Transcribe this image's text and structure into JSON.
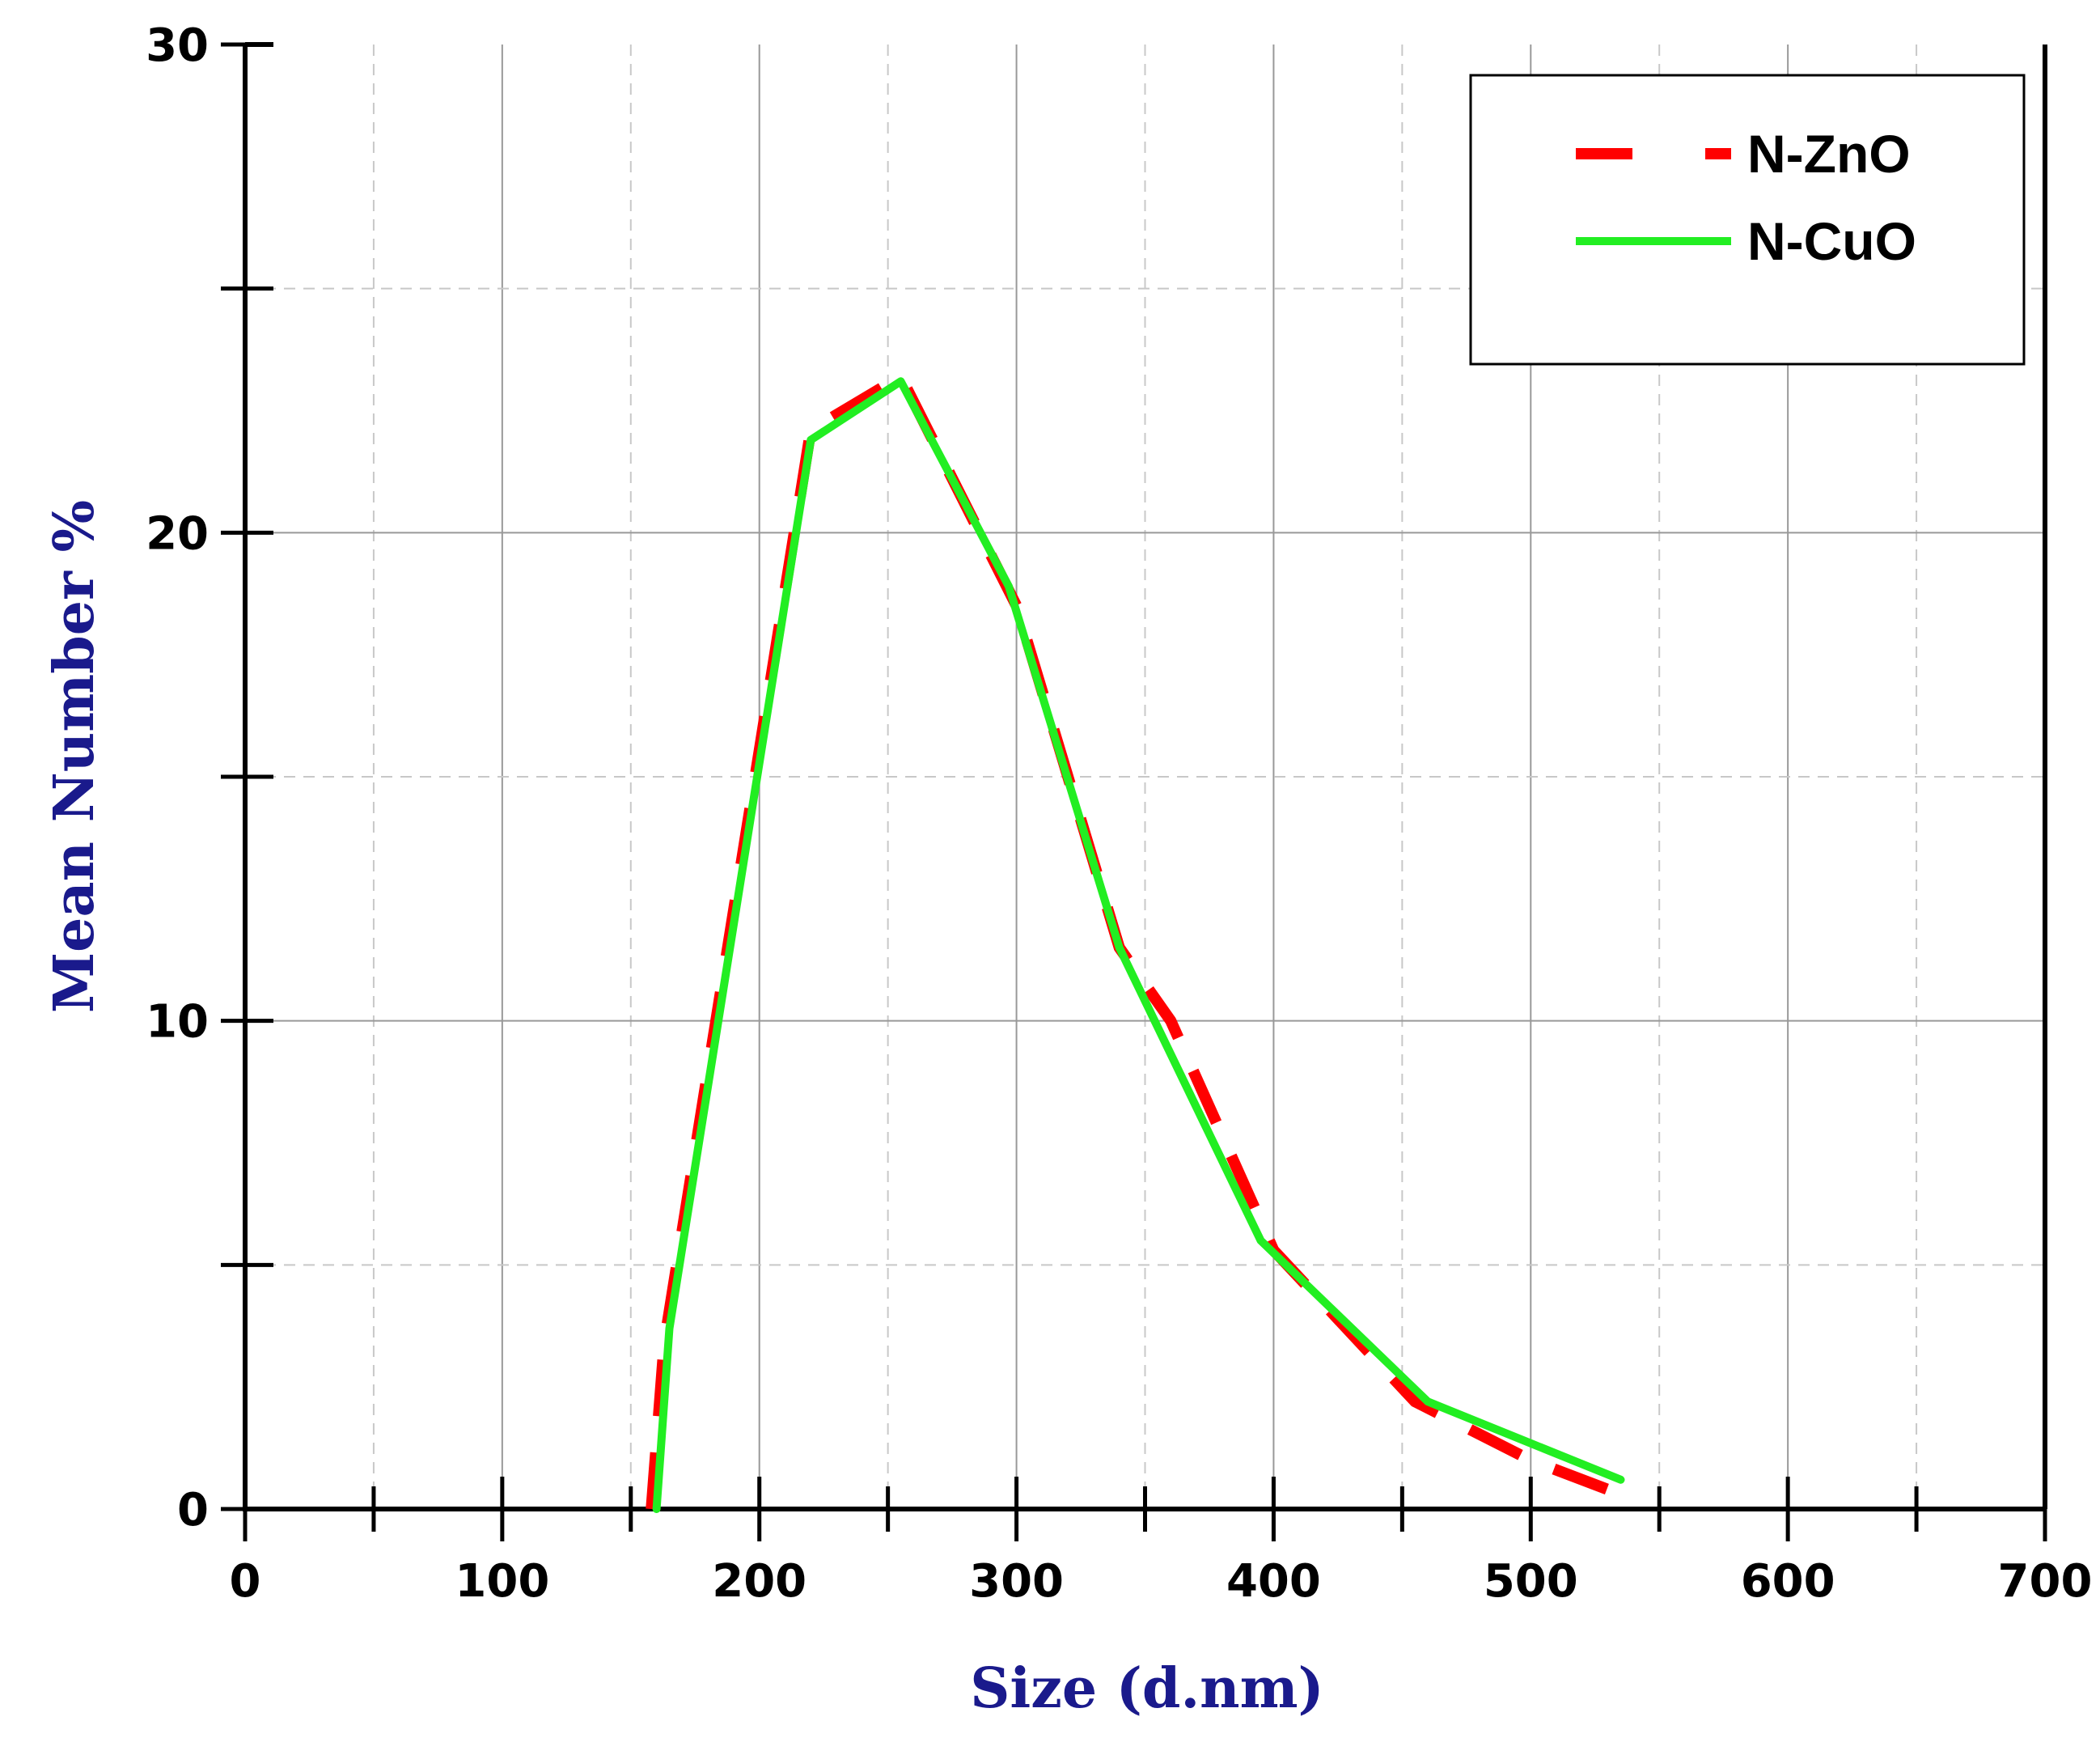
{
  "chart_data": {
    "type": "line",
    "title": "",
    "xlabel": "Size (d.nm)",
    "ylabel": "Mean Number %",
    "xlim": [
      0,
      700
    ],
    "ylim": [
      0,
      30
    ],
    "x_ticks": [
      0,
      100,
      200,
      300,
      400,
      500,
      600,
      700
    ],
    "y_ticks": [
      0,
      10,
      20,
      30
    ],
    "grid": true,
    "legend_position": "top-right",
    "series": [
      {
        "name": "N-ZnO",
        "color": "#ff0000",
        "style": "dashed",
        "x": [
          158,
          163,
          220,
          255,
          300,
          340,
          360,
          400,
          455,
          500,
          530
        ],
        "y": [
          0,
          3.4,
          22.1,
          23.2,
          18.5,
          11.5,
          10,
          5.3,
          2.2,
          1,
          0.4
        ]
      },
      {
        "name": "N-CuO",
        "color": "#22ee22",
        "style": "solid",
        "x": [
          160,
          165,
          220,
          255,
          297,
          340,
          395,
          460,
          535
        ],
        "y": [
          0,
          3.7,
          21.9,
          23.1,
          18.9,
          11.5,
          5.5,
          2.2,
          0.6
        ]
      }
    ]
  },
  "colors": {
    "axis_title": "#1a1a8c",
    "grid_major": "#999999",
    "grid_minor": "#c8c8c8"
  }
}
